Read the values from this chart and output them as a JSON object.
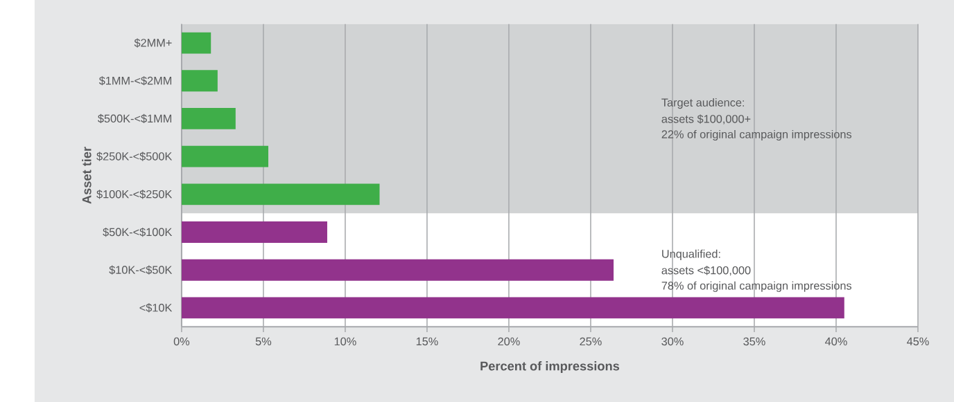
{
  "chart_data": {
    "type": "bar",
    "orientation": "horizontal",
    "xlabel": "Percent of impressions",
    "ylabel": "Asset tier",
    "categories": [
      "$2MM+",
      "$1MM-<$2MM",
      "$500K-<$1MM",
      "$250K-<$500K",
      "$100K-<$250K",
      "$50K-<$100K",
      "$10K-<$50K",
      "<$10K"
    ],
    "values": [
      1.8,
      2.2,
      3.3,
      5.3,
      12.1,
      8.9,
      26.4,
      40.5
    ],
    "colors": [
      "#3fae49",
      "#3fae49",
      "#3fae49",
      "#3fae49",
      "#3fae49",
      "#92338c",
      "#92338c",
      "#92338c"
    ],
    "xlim": [
      0,
      45
    ],
    "xticks": [
      {
        "value": 0,
        "label": "0%"
      },
      {
        "value": 5,
        "label": "5%"
      },
      {
        "value": 10,
        "label": "10%"
      },
      {
        "value": 15,
        "label": "15%"
      },
      {
        "value": 20,
        "label": "20%"
      },
      {
        "value": 25,
        "label": "25%"
      },
      {
        "value": 30,
        "label": "30%"
      },
      {
        "value": 35,
        "label": "35%"
      },
      {
        "value": 40,
        "label": "40%"
      },
      {
        "value": 45,
        "label": "45%"
      }
    ],
    "grid": "x",
    "bands": [
      {
        "axis": "y",
        "from": "$2MM+",
        "to": "$100K-<$250K",
        "color": "#d1d3d4"
      }
    ],
    "annotations": [
      "Target audience:",
      "assets $100,000+",
      "22% of original campaign impressions",
      "Unqualified:",
      "assets <$100,000",
      "78% of original campaign impressions"
    ]
  }
}
